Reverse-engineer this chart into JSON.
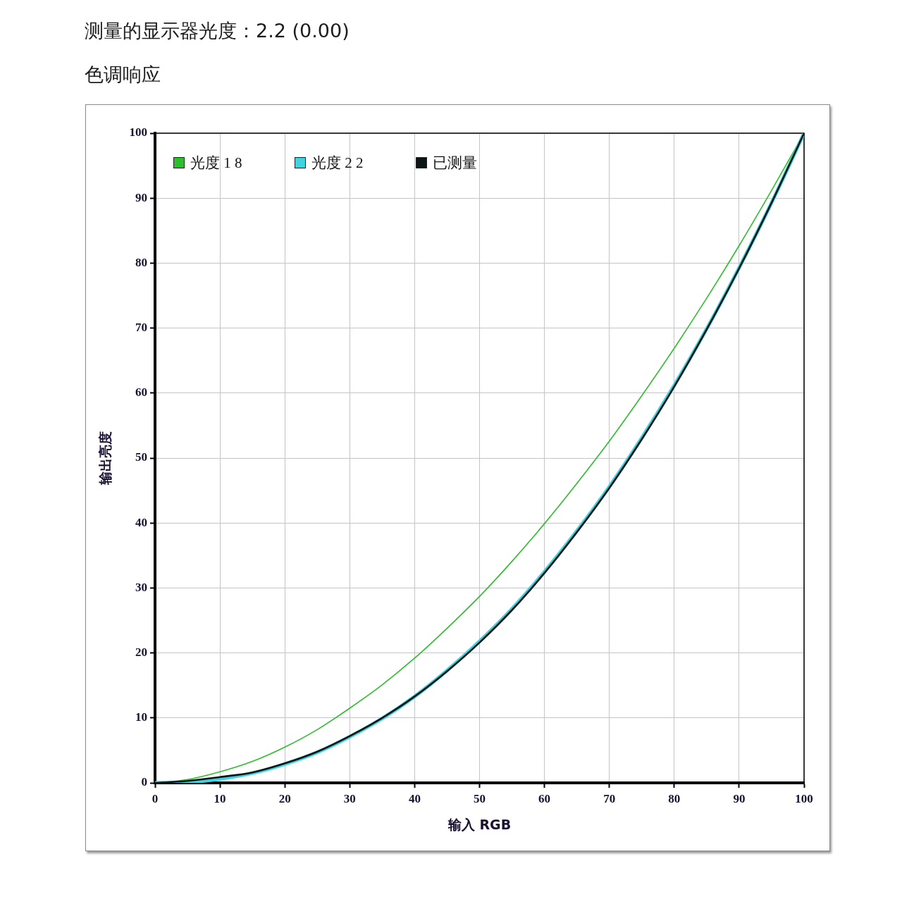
{
  "chart_data": {
    "type": "line",
    "title": "测量的显示器光度：2.2 (0.00)",
    "subtitle": "色调响应",
    "xlabel": "输入 RGB",
    "ylabel": "输出亮度",
    "x": [
      0,
      5,
      10,
      15,
      20,
      25,
      30,
      35,
      40,
      45,
      50,
      55,
      60,
      65,
      70,
      75,
      80,
      85,
      90,
      95,
      100
    ],
    "series": [
      {
        "name": "光度 1 8",
        "color": "#2ebd2e",
        "values": [
          0,
          0.5,
          1.7,
          3.3,
          5.5,
          8.2,
          11.5,
          15.1,
          19.2,
          23.8,
          28.7,
          34.1,
          39.9,
          46.1,
          52.6,
          59.6,
          66.9,
          74.6,
          82.7,
          91.2,
          100
        ]
      },
      {
        "name": "光度 2 2",
        "color": "#3fd3e0",
        "values": [
          0,
          0.1,
          0.6,
          1.5,
          2.9,
          4.7,
          7.1,
          9.9,
          13.3,
          17.3,
          21.8,
          26.8,
          32.5,
          38.8,
          45.6,
          53.1,
          61.2,
          69.9,
          79.3,
          89.3,
          100
        ]
      },
      {
        "name": "已测量",
        "color": "#0d1414",
        "values": [
          0,
          0.3,
          0.9,
          1.6,
          3.0,
          4.8,
          7.2,
          10.0,
          13.3,
          17.2,
          21.6,
          26.6,
          32.3,
          38.6,
          45.4,
          52.9,
          61.0,
          69.8,
          79.2,
          89.3,
          100
        ]
      }
    ],
    "xlim": [
      0,
      100
    ],
    "ylim": [
      0,
      100
    ],
    "xticks": [
      0,
      10,
      20,
      30,
      40,
      50,
      60,
      70,
      80,
      90,
      100
    ],
    "yticks": [
      0,
      10,
      20,
      30,
      40,
      50,
      60,
      70,
      80,
      90,
      100
    ],
    "grid": true,
    "legend": "top left",
    "marker": "none",
    "line_style": "solid"
  }
}
